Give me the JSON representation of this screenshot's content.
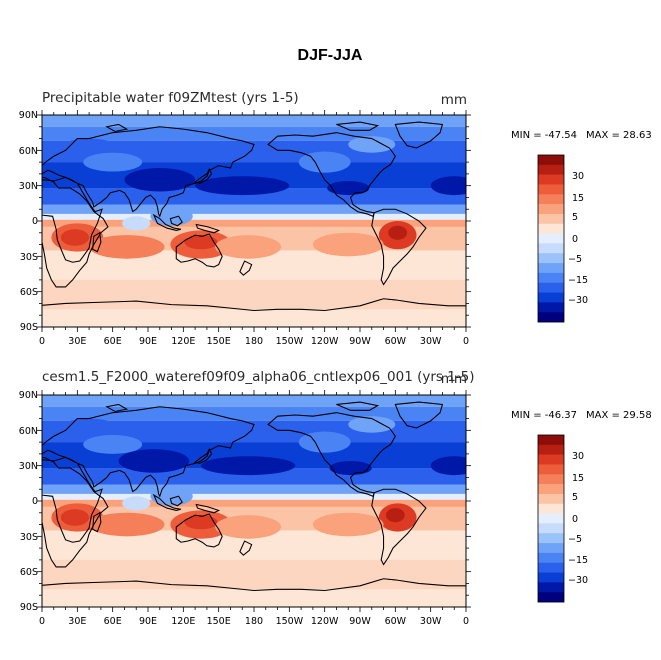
{
  "figure": {
    "title": "DJF-JJA"
  },
  "colors": {
    "scale": [
      "#00007f",
      "#0018a8",
      "#0a3fd6",
      "#2a60ec",
      "#4a84f4",
      "#6fa3f7",
      "#9bc2fa",
      "#c7dcfb",
      "#e4eefc",
      "#fde6d6",
      "#fbc4a6",
      "#f9a27c",
      "#f47f58",
      "#ee5d3b",
      "#dc3a22",
      "#b81f13",
      "#8c0d0a"
    ],
    "ocean_north": "#2d5ee8",
    "ocean_south": "#fbc9ae",
    "coast": "#000000"
  },
  "panels": [
    {
      "title": "Precipitable water  f09ZMtest (yrs 1-5)",
      "units": "mm",
      "min_label": "MIN = -47.54",
      "max_label": "MAX =  28.63"
    },
    {
      "title": "cesm1.5_F2000_wateref09f09_alpha06_cntlexp06_001 (yrs 1-5)",
      "units": "mm",
      "min_label": "MIN = -46.37",
      "max_label": "MAX =  29.58"
    }
  ],
  "colorbar": {
    "labels": [
      "30",
      "15",
      "5",
      "0",
      "−5",
      "−15",
      "−30"
    ]
  },
  "map": {
    "lat_labels": [
      "90N",
      "60N",
      "30N",
      "0",
      "30S",
      "60S",
      "90S"
    ],
    "lon_labels": [
      "0",
      "30E",
      "60E",
      "90E",
      "120E",
      "150E",
      "180",
      "150W",
      "120W",
      "90W",
      "60W",
      "30W",
      "0"
    ]
  }
}
